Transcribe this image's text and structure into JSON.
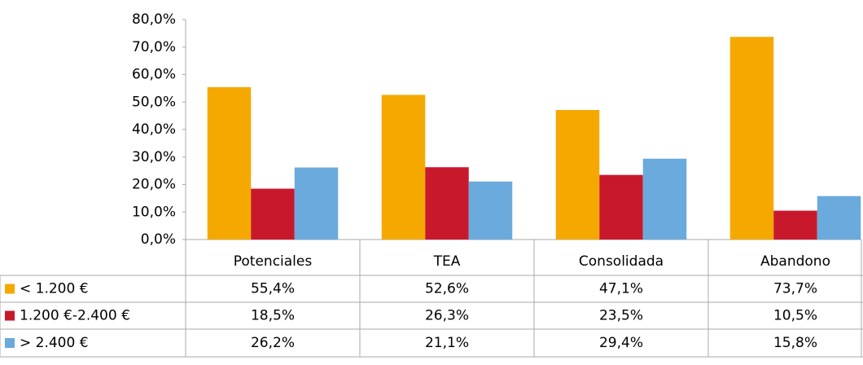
{
  "chart_data": {
    "type": "bar",
    "categories": [
      "Potenciales",
      "TEA",
      "Consolidada",
      "Abandono"
    ],
    "series": [
      {
        "name": "< 1.200 €",
        "color": "#f5a800",
        "values": [
          55.4,
          52.6,
          47.1,
          73.7
        ],
        "value_labels": [
          "55,4%",
          "52,6%",
          "47,1%",
          "73,7%"
        ]
      },
      {
        "name": "1.200 €-2.400 €",
        "color": "#c8192c",
        "values": [
          18.5,
          26.3,
          23.5,
          10.5
        ],
        "value_labels": [
          "18,5%",
          "26,3%",
          "23,5%",
          "10,5%"
        ]
      },
      {
        "name": "> 2.400 €",
        "color": "#6aaadd",
        "values": [
          26.2,
          21.1,
          29.4,
          15.8
        ],
        "value_labels": [
          "26,2%",
          "21,1%",
          "29,4%",
          "15,8%"
        ]
      }
    ],
    "ylim": [
      0,
      80
    ],
    "yticks": [
      {
        "value": 0,
        "label": "0,0%"
      },
      {
        "value": 10,
        "label": "10,0%"
      },
      {
        "value": 20,
        "label": "20,0%"
      },
      {
        "value": 30,
        "label": "30,0%"
      },
      {
        "value": 40,
        "label": "40,0%"
      },
      {
        "value": 50,
        "label": "50,0%"
      },
      {
        "value": 60,
        "label": "60,0%"
      },
      {
        "value": 70,
        "label": "70,0%"
      },
      {
        "value": 80,
        "label": "80,0%"
      }
    ]
  }
}
